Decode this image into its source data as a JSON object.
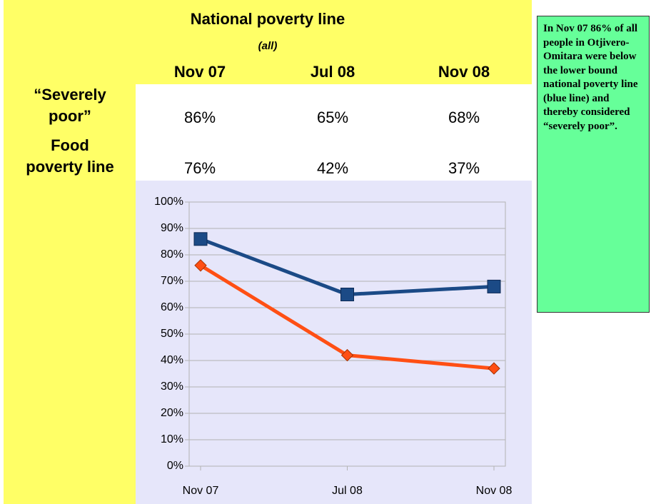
{
  "chart_data": {
    "type": "line",
    "title": "National poverty line",
    "subtitle": "(all)",
    "categories": [
      "Nov 07",
      "Jul 08",
      "Nov 08"
    ],
    "series": [
      {
        "name": "“Severely poor”",
        "color": "#1b4a86",
        "marker": "square",
        "values": [
          86,
          65,
          68
        ],
        "value_labels": [
          "86%",
          "65%",
          "68%"
        ]
      },
      {
        "name": "Food poverty line",
        "color": "#ff4f14",
        "marker": "diamond",
        "values": [
          76,
          42,
          37
        ],
        "value_labels": [
          "76%",
          "42%",
          "37%"
        ]
      }
    ],
    "ylim": [
      0,
      100
    ],
    "yticks": [
      {
        "value": 0,
        "label": "0%"
      },
      {
        "value": 10,
        "label": "10%"
      },
      {
        "value": 20,
        "label": "20%"
      },
      {
        "value": 30,
        "label": "30%"
      },
      {
        "value": 40,
        "label": "40%"
      },
      {
        "value": 50,
        "label": "50%"
      },
      {
        "value": 60,
        "label": "60%"
      },
      {
        "value": 70,
        "label": "70%"
      },
      {
        "value": 80,
        "label": "80%"
      },
      {
        "value": 90,
        "label": "90%"
      },
      {
        "value": 100,
        "label": "100%"
      }
    ],
    "grid": true,
    "annotation": "In Nov 07 86% of all people in Otjivero-Omitara were below the lower bound national poverty line (blue line) and thereby considered “severely poor”."
  }
}
